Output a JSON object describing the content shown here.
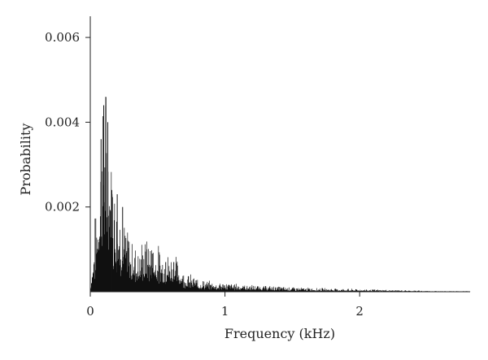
{
  "chart_data": {
    "type": "bar",
    "title": "",
    "xlabel": "Frequency (kHz)",
    "ylabel": "Probability",
    "xlim": [
      0,
      2.82
    ],
    "ylim": [
      0,
      0.0065
    ],
    "x_ticks": [
      {
        "value": 0,
        "label": "0"
      },
      {
        "value": 1,
        "label": "1"
      },
      {
        "value": 2,
        "label": "2"
      }
    ],
    "y_ticks": [
      {
        "value": 0.002,
        "label": "0.002"
      },
      {
        "value": 0.004,
        "label": "0.004"
      },
      {
        "value": 0.006,
        "label": "0.006"
      }
    ],
    "grid": false,
    "legend": "none",
    "color": "#111111",
    "envelope": {
      "x": [
        0,
        0.02,
        0.05,
        0.08,
        0.1,
        0.12,
        0.15,
        0.2,
        0.25,
        0.3,
        0.35,
        0.4,
        0.45,
        0.5,
        0.55,
        0.6,
        0.65,
        0.7,
        0.8,
        0.9,
        1.0,
        1.1,
        1.2,
        1.4,
        1.6,
        1.8,
        2.0,
        2.2,
        2.4,
        2.6,
        2.82
      ],
      "y": [
        0.0001,
        0.0006,
        0.0016,
        0.0024,
        0.0034,
        0.003,
        0.0024,
        0.0016,
        0.0011,
        0.0008,
        0.0007,
        0.0008,
        0.0008,
        0.0007,
        0.0006,
        0.0006,
        0.0005,
        0.0003,
        0.0002,
        0.00015,
        0.00014,
        0.00012,
        0.0001,
        8e-05,
        6e-05,
        5e-05,
        4e-05,
        3e-05,
        2e-05,
        1e-05,
        1e-05
      ]
    },
    "peaks": [
      {
        "x": 0.08,
        "y": 0.0036
      },
      {
        "x": 0.1,
        "y": 0.0044
      },
      {
        "x": 0.115,
        "y": 0.0046
      },
      {
        "x": 0.13,
        "y": 0.004
      },
      {
        "x": 0.16,
        "y": 0.0024
      },
      {
        "x": 0.2,
        "y": 0.0023
      },
      {
        "x": 0.24,
        "y": 0.002
      },
      {
        "x": 0.28,
        "y": 0.0012
      },
      {
        "x": 0.42,
        "y": 0.001
      },
      {
        "x": 0.46,
        "y": 0.0009
      },
      {
        "x": 0.56,
        "y": 0.0007
      },
      {
        "x": 0.62,
        "y": 0.0007
      }
    ]
  }
}
